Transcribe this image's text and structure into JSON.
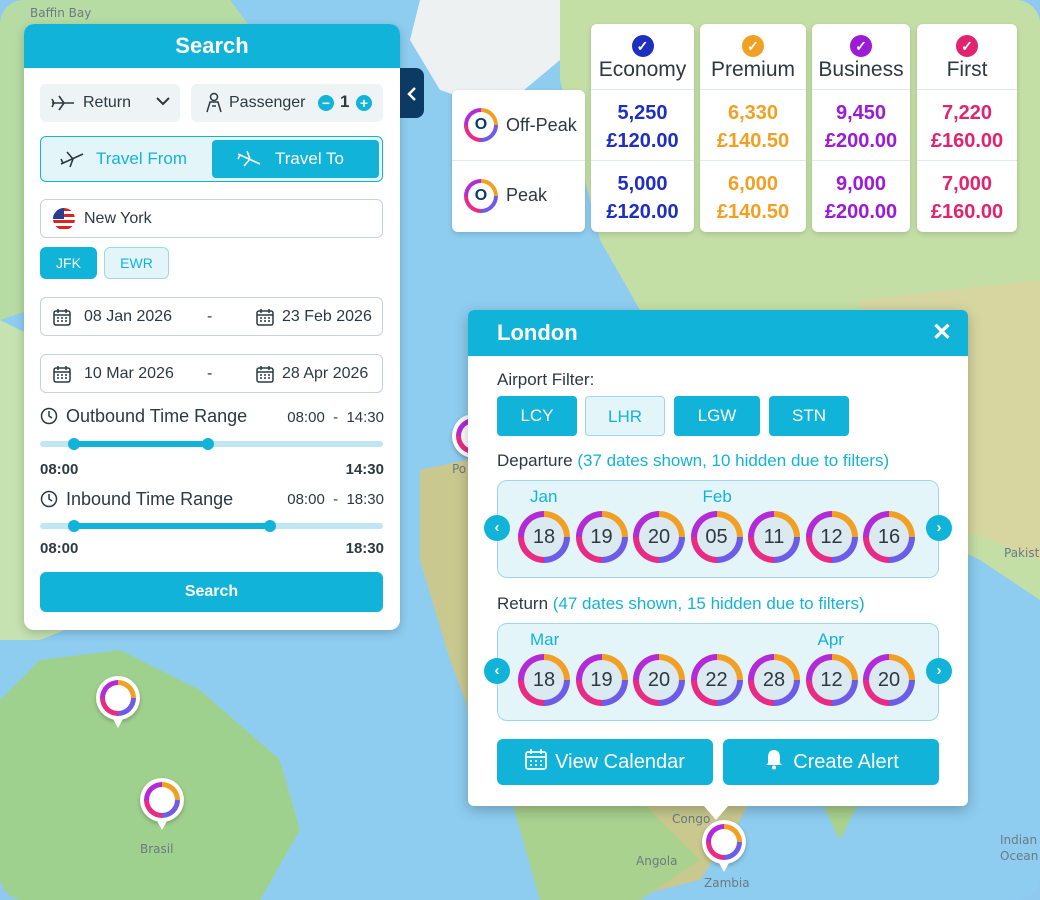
{
  "map": {
    "labels": [
      "Baffin Bay",
      "Brasil",
      "Angola",
      "Zambia",
      "Indian Ocean",
      "Pakist",
      "Po",
      "Congo"
    ]
  },
  "search": {
    "title": "Search",
    "trip_type": "Return",
    "passenger_label": "Passenger",
    "passenger_count": "1",
    "travel_from_label": "Travel From",
    "travel_to_label": "Travel To",
    "city": "New York",
    "airports": [
      "JFK",
      "EWR"
    ],
    "selected_airport": "JFK",
    "date_ranges": [
      {
        "from": "08 Jan 2026",
        "to": "23 Feb 2026",
        "sep": "-"
      },
      {
        "from": "10 Mar 2026",
        "to": "28 Apr 2026",
        "sep": "-"
      }
    ],
    "outbound": {
      "label": "Outbound Time Range",
      "range": "08:00  -  14:30",
      "min": "08:00",
      "max": "14:30",
      "start_fraction": 0.1,
      "end_fraction": 0.49
    },
    "inbound": {
      "label": "Inbound Time Range",
      "range": "08:00  -  18:30",
      "min": "08:00",
      "max": "18:30",
      "start_fraction": 0.1,
      "end_fraction": 0.67
    },
    "button_label": "Search"
  },
  "fares": {
    "rows": [
      {
        "label": "Off-Peak",
        "logo": "O"
      },
      {
        "label": "Peak",
        "logo": "O"
      }
    ],
    "classes": [
      {
        "name": "Economy",
        "color": "#1f2fbf",
        "offpeak_points": "5,250",
        "offpeak_price": "£120.00",
        "peak_points": "5,000",
        "peak_price": "£120.00"
      },
      {
        "name": "Premium",
        "color": "#f2a024",
        "offpeak_points": "6,330",
        "offpeak_price": "£140.50",
        "peak_points": "6,000",
        "peak_price": "£140.50"
      },
      {
        "name": "Business",
        "color": "#9b1bd6",
        "offpeak_points": "9,450",
        "offpeak_price": "£200.00",
        "peak_points": "9,000",
        "peak_price": "£200.00"
      },
      {
        "name": "First",
        "color": "#e0246f",
        "offpeak_points": "7,220",
        "offpeak_price": "£160.00",
        "peak_points": "7,000",
        "peak_price": "£160.00"
      }
    ]
  },
  "london": {
    "title": "London",
    "airport_filter_label": "Airport Filter:",
    "filters": [
      {
        "code": "LCY",
        "active": true
      },
      {
        "code": "LHR",
        "active": false
      },
      {
        "code": "LGW",
        "active": true
      },
      {
        "code": "STN",
        "active": true
      }
    ],
    "departure_label": "Departure",
    "departure_note": "(37 dates shown, 10 hidden due to filters)",
    "departure_months": [
      {
        "name": "Jan",
        "index": 0
      },
      {
        "name": "Feb",
        "index": 3
      }
    ],
    "departure_dates": [
      "18",
      "19",
      "20",
      "05",
      "11",
      "12",
      "16"
    ],
    "return_label": "Return",
    "return_note": "(47 dates shown, 15 hidden due to filters)",
    "return_months": [
      {
        "name": "Mar",
        "index": 0
      },
      {
        "name": "Apr",
        "index": 5
      }
    ],
    "return_dates": [
      "18",
      "19",
      "20",
      "22",
      "28",
      "12",
      "20"
    ],
    "view_calendar_label": "View Calendar",
    "create_alert_label": "Create Alert",
    "close_label": "✕"
  }
}
